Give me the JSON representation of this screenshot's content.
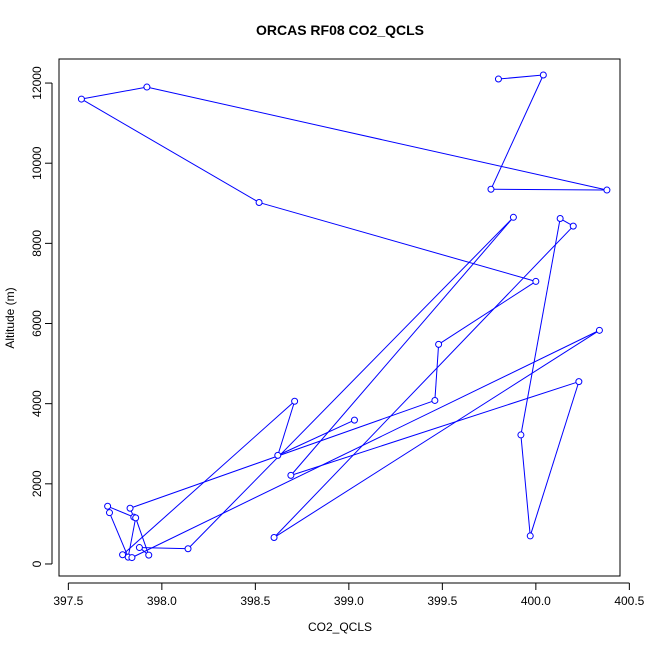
{
  "chart_data": {
    "type": "line",
    "title": "ORCAS RF08 CO2_QCLS",
    "xlabel": "CO2_QCLS",
    "ylabel": "Altitude (m)",
    "xlim": [
      397.45,
      400.45
    ],
    "ylim": [
      -300,
      12600
    ],
    "xticks": [
      397.5,
      398.0,
      398.5,
      399.0,
      399.5,
      400.0,
      400.5
    ],
    "xtick_labels": [
      "397.5",
      "398.0",
      "398.5",
      "399.0",
      "399.5",
      "400.0",
      "400.5"
    ],
    "yticks": [
      0,
      2000,
      4000,
      6000,
      8000,
      10000,
      12000
    ],
    "ytick_labels": [
      "0",
      "2000",
      "4000",
      "6000",
      "8000",
      "10000",
      "12000"
    ],
    "grid": false,
    "legend": "none",
    "series": [
      {
        "color": "#0000ff",
        "marker": "open-circle",
        "x": [
          399.8,
          400.04,
          399.76,
          400.38,
          397.92,
          397.57,
          398.52,
          400.0,
          399.48,
          399.46,
          397.83,
          397.85,
          397.71,
          397.72,
          397.82,
          397.86,
          397.93,
          397.88,
          398.14,
          399.88,
          398.69,
          400.23,
          399.97,
          399.92,
          400.13,
          400.2,
          398.6,
          400.34,
          397.84,
          397.79,
          398.71,
          398.62,
          399.03
        ],
        "y": [
          12100,
          12200,
          9350,
          9330,
          11900,
          11600,
          9020,
          7050,
          5480,
          4080,
          1390,
          1170,
          1440,
          1280,
          170,
          1150,
          220,
          410,
          380,
          8650,
          2210,
          4550,
          700,
          3220,
          8620,
          8430,
          660,
          5830,
          160,
          230,
          4060,
          2710,
          3590
        ]
      }
    ]
  }
}
